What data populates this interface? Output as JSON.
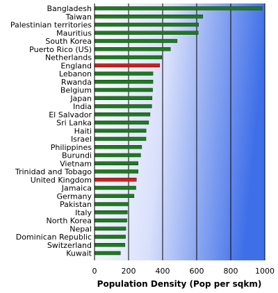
{
  "chart_data": {
    "type": "bar",
    "orientation": "horizontal",
    "title": "",
    "xlabel": "Population Density (Pop per sqkm)",
    "ylabel": "",
    "xlim": [
      0,
      1000
    ],
    "xticks": [
      "0",
      "200",
      "400",
      "600",
      "800",
      "1000"
    ],
    "grid": true,
    "legend": "none",
    "categories": [
      "Bangladesh",
      "Taiwan",
      "Palestinian territories",
      "Mauritius",
      "South Korea",
      "Puerto Rico (US)",
      "Netherlands",
      "England",
      "Lebanon",
      "Rwanda",
      "Belgium",
      "Japan",
      "India",
      "El Salvador",
      "Sri Lanka",
      "Haiti",
      "Israel",
      "Philippines",
      "Burundi",
      "Vietnam",
      "Trinidad and Tobago",
      "United Kingdom",
      "Jamaica",
      "Germany",
      "Pakistan",
      "Italy",
      "North Korea",
      "Nepal",
      "Dominican Republic",
      "Switzerland",
      "Kuwait"
    ],
    "values": [
      985,
      636,
      611,
      609,
      485,
      446,
      395,
      383,
      343,
      343,
      341,
      338,
      336,
      326,
      318,
      303,
      302,
      277,
      271,
      256,
      256,
      246,
      243,
      232,
      200,
      193,
      190,
      184,
      182,
      179,
      152
    ],
    "highlighted": [
      "England",
      "United Kingdom"
    ]
  },
  "colors": {
    "bar": "#1f7a1f",
    "bar_highlight": "#cc1f1f",
    "background_light": "#ffffff",
    "background_dark": "#4a78ea",
    "gridline": "#000000"
  }
}
